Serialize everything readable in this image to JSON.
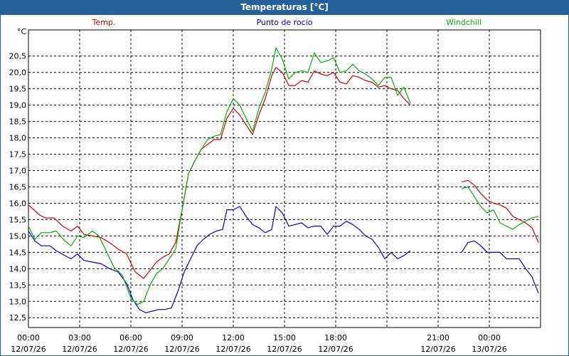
{
  "window": {
    "title": "Temperaturas [°C]"
  },
  "chart_data": {
    "type": "line",
    "title": "Temperaturas [°C]",
    "ylabel": "°C",
    "ylim": [
      12.2,
      21.3
    ],
    "xlim": [
      0,
      24
    ],
    "grid": true,
    "legend_placement": "top",
    "y_ticks": [
      "12,5",
      "13,0",
      "13,5",
      "14,0",
      "14,5",
      "15,0",
      "15,5",
      "16,0",
      "16,5",
      "17,0",
      "17,5",
      "18,0",
      "18,5",
      "19,0",
      "19,5",
      "20,0",
      "20,5"
    ],
    "x_ticks": [
      {
        "time": "00:00",
        "date": "12/07/26"
      },
      {
        "time": "03:00",
        "date": "12/07/26"
      },
      {
        "time": "06:00",
        "date": "12/07/26"
      },
      {
        "time": "09:00",
        "date": "12/07/26"
      },
      {
        "time": "12:00",
        "date": "12/07/26"
      },
      {
        "time": "15:00",
        "date": "12/07/26"
      },
      {
        "time": "18:00",
        "date": "12/07/26"
      },
      {
        "time": "",
        "date": ""
      },
      {
        "time": "21:00",
        "date": "12/07/26"
      },
      {
        "time": "00:00",
        "date": "13/07/26"
      }
    ],
    "series": [
      {
        "name": "Temp.",
        "color": "#d40000",
        "segments": [
          [
            [
              0,
              15.95
            ],
            [
              0.5,
              15.65
            ],
            [
              0.8,
              15.55
            ],
            [
              1.2,
              15.55
            ],
            [
              1.6,
              15.3
            ],
            [
              2.0,
              15.15
            ],
            [
              2.3,
              15.3
            ],
            [
              2.6,
              15.05
            ],
            [
              3.0,
              15.0
            ],
            [
              3.4,
              14.95
            ],
            [
              3.8,
              14.8
            ],
            [
              4.2,
              14.6
            ],
            [
              4.6,
              14.45
            ],
            [
              5.0,
              13.9
            ],
            [
              5.4,
              13.7
            ],
            [
              5.7,
              13.95
            ],
            [
              6.0,
              14.2
            ],
            [
              6.3,
              14.35
            ],
            [
              6.6,
              14.45
            ],
            [
              6.9,
              14.8
            ],
            [
              7.2,
              15.8
            ],
            [
              7.5,
              16.9
            ],
            [
              7.8,
              17.3
            ],
            [
              8.1,
              17.65
            ],
            [
              8.4,
              17.8
            ],
            [
              8.7,
              17.95
            ],
            [
              9.0,
              17.95
            ],
            [
              9.3,
              18.6
            ],
            [
              9.6,
              18.9
            ],
            [
              9.9,
              18.7
            ],
            [
              10.2,
              18.4
            ],
            [
              10.5,
              18.1
            ],
            [
              10.8,
              18.7
            ],
            [
              11.1,
              19.2
            ],
            [
              11.4,
              19.9
            ],
            [
              11.6,
              20.15
            ],
            [
              11.9,
              20.0
            ],
            [
              12.2,
              19.6
            ],
            [
              12.5,
              19.6
            ],
            [
              12.8,
              19.75
            ],
            [
              13.1,
              19.7
            ],
            [
              13.4,
              20.05
            ],
            [
              13.7,
              19.95
            ],
            [
              14.0,
              19.9
            ],
            [
              14.3,
              20.0
            ],
            [
              14.6,
              19.7
            ],
            [
              14.9,
              19.65
            ],
            [
              15.2,
              19.9
            ],
            [
              15.5,
              19.85
            ],
            [
              15.8,
              19.75
            ],
            [
              16.1,
              19.7
            ],
            [
              16.4,
              19.55
            ],
            [
              16.7,
              19.6
            ],
            [
              17.0,
              19.5
            ],
            [
              17.3,
              19.45
            ],
            [
              17.6,
              19.2
            ],
            [
              17.9,
              19.0
            ]
          ],
          [
            [
              20.3,
              16.65
            ],
            [
              20.6,
              16.7
            ],
            [
              20.9,
              16.55
            ],
            [
              21.2,
              16.3
            ],
            [
              21.5,
              16.1
            ],
            [
              21.8,
              16.0
            ],
            [
              22.1,
              15.95
            ],
            [
              22.4,
              15.85
            ],
            [
              22.7,
              15.6
            ],
            [
              23.0,
              15.5
            ],
            [
              23.3,
              15.4
            ],
            [
              23.6,
              15.25
            ],
            [
              23.9,
              14.8
            ]
          ]
        ]
      },
      {
        "name": "Punto de rocío",
        "color": "#0000c8",
        "segments": [
          [
            [
              0,
              15.15
            ],
            [
              0.3,
              14.85
            ],
            [
              0.6,
              14.7
            ],
            [
              1.0,
              14.7
            ],
            [
              1.3,
              14.55
            ],
            [
              1.7,
              14.4
            ],
            [
              2.0,
              14.3
            ],
            [
              2.3,
              14.45
            ],
            [
              2.6,
              14.25
            ],
            [
              3.0,
              14.2
            ],
            [
              3.4,
              14.15
            ],
            [
              3.8,
              14.0
            ],
            [
              4.2,
              13.9
            ],
            [
              4.6,
              13.55
            ],
            [
              4.9,
              13.05
            ],
            [
              5.2,
              12.75
            ],
            [
              5.5,
              12.65
            ],
            [
              5.8,
              12.7
            ],
            [
              6.1,
              12.75
            ],
            [
              6.4,
              12.75
            ],
            [
              6.7,
              12.8
            ],
            [
              7.0,
              13.3
            ],
            [
              7.3,
              13.9
            ],
            [
              7.6,
              14.3
            ],
            [
              7.9,
              14.7
            ],
            [
              8.2,
              14.9
            ],
            [
              8.5,
              15.05
            ],
            [
              8.8,
              15.15
            ],
            [
              9.1,
              15.2
            ],
            [
              9.3,
              15.8
            ],
            [
              9.6,
              15.8
            ],
            [
              9.9,
              15.9
            ],
            [
              10.2,
              15.6
            ],
            [
              10.5,
              15.35
            ],
            [
              10.8,
              15.25
            ],
            [
              11.1,
              15.1
            ],
            [
              11.4,
              15.2
            ],
            [
              11.6,
              15.9
            ],
            [
              11.9,
              15.7
            ],
            [
              12.2,
              15.3
            ],
            [
              12.5,
              15.35
            ],
            [
              12.8,
              15.4
            ],
            [
              13.1,
              15.25
            ],
            [
              13.4,
              15.3
            ],
            [
              13.7,
              15.3
            ],
            [
              14.0,
              15.05
            ],
            [
              14.3,
              15.3
            ],
            [
              14.6,
              15.3
            ],
            [
              14.9,
              15.45
            ],
            [
              15.2,
              15.35
            ],
            [
              15.5,
              15.2
            ],
            [
              15.8,
              15.0
            ],
            [
              16.1,
              14.9
            ],
            [
              16.4,
              14.65
            ],
            [
              16.7,
              14.3
            ],
            [
              17.0,
              14.5
            ],
            [
              17.3,
              14.3
            ],
            [
              17.6,
              14.4
            ],
            [
              17.9,
              14.55
            ]
          ],
          [
            [
              20.3,
              14.5
            ],
            [
              20.6,
              14.8
            ],
            [
              20.9,
              14.85
            ],
            [
              21.2,
              14.7
            ],
            [
              21.5,
              14.5
            ],
            [
              21.8,
              14.5
            ],
            [
              22.1,
              14.5
            ],
            [
              22.4,
              14.3
            ],
            [
              22.7,
              14.3
            ],
            [
              23.0,
              14.3
            ],
            [
              23.3,
              14.0
            ],
            [
              23.6,
              13.75
            ],
            [
              23.9,
              13.25
            ]
          ]
        ]
      },
      {
        "name": "Windchill",
        "color": "#00b000",
        "segments": [
          [
            [
              0,
              15.3
            ],
            [
              0.3,
              14.9
            ],
            [
              0.6,
              15.1
            ],
            [
              1.0,
              15.1
            ],
            [
              1.3,
              15.15
            ],
            [
              1.7,
              14.85
            ],
            [
              2.0,
              14.7
            ],
            [
              2.3,
              15.0
            ],
            [
              2.6,
              14.95
            ],
            [
              3.0,
              15.15
            ],
            [
              3.3,
              15.0
            ],
            [
              3.6,
              14.6
            ],
            [
              4.0,
              14.05
            ],
            [
              4.4,
              13.8
            ],
            [
              4.8,
              13.1
            ],
            [
              5.1,
              12.9
            ],
            [
              5.4,
              13.0
            ],
            [
              5.7,
              13.5
            ],
            [
              6.0,
              13.85
            ],
            [
              6.3,
              14.0
            ],
            [
              6.6,
              14.3
            ],
            [
              6.9,
              14.6
            ],
            [
              7.2,
              15.8
            ],
            [
              7.5,
              16.9
            ],
            [
              7.8,
              17.3
            ],
            [
              8.1,
              17.65
            ],
            [
              8.4,
              17.95
            ],
            [
              8.7,
              18.05
            ],
            [
              9.0,
              18.1
            ],
            [
              9.3,
              18.8
            ],
            [
              9.6,
              19.2
            ],
            [
              9.9,
              19.0
            ],
            [
              10.2,
              18.6
            ],
            [
              10.5,
              18.2
            ],
            [
              10.8,
              18.9
            ],
            [
              11.1,
              19.4
            ],
            [
              11.4,
              20.1
            ],
            [
              11.6,
              20.75
            ],
            [
              11.9,
              20.4
            ],
            [
              12.2,
              19.8
            ],
            [
              12.5,
              20.0
            ],
            [
              12.8,
              20.05
            ],
            [
              13.1,
              20.0
            ],
            [
              13.4,
              20.6
            ],
            [
              13.7,
              20.3
            ],
            [
              14.0,
              20.35
            ],
            [
              14.3,
              20.45
            ],
            [
              14.6,
              20.0
            ],
            [
              14.9,
              20.05
            ],
            [
              15.2,
              20.25
            ],
            [
              15.5,
              20.05
            ],
            [
              15.8,
              19.95
            ],
            [
              16.1,
              19.8
            ],
            [
              16.4,
              19.6
            ],
            [
              16.7,
              19.85
            ],
            [
              17.0,
              19.85
            ],
            [
              17.3,
              19.3
            ],
            [
              17.6,
              19.55
            ],
            [
              17.9,
              19.05
            ]
          ],
          [
            [
              20.3,
              16.45
            ],
            [
              20.6,
              16.5
            ],
            [
              20.9,
              16.2
            ],
            [
              21.2,
              15.9
            ],
            [
              21.5,
              15.7
            ],
            [
              21.8,
              15.8
            ],
            [
              22.1,
              15.4
            ],
            [
              22.4,
              15.3
            ],
            [
              22.7,
              15.2
            ],
            [
              23.0,
              15.35
            ],
            [
              23.3,
              15.45
            ],
            [
              23.6,
              15.55
            ],
            [
              23.9,
              15.6
            ]
          ]
        ]
      }
    ]
  }
}
